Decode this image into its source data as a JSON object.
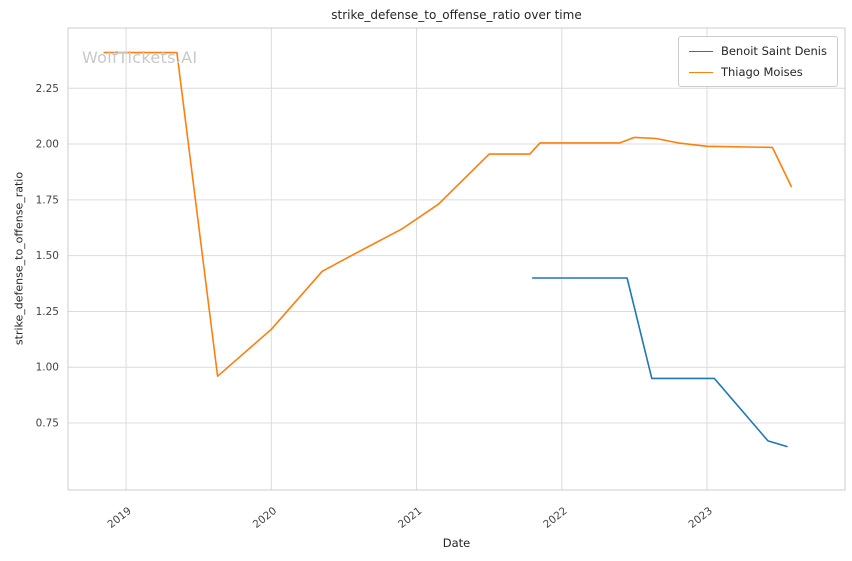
{
  "title": "strike_defense_to_offense_ratio over time",
  "xlabel": "Date",
  "ylabel": "strike_defense_to_offense_ratio",
  "watermark": "WolfTickets.AI",
  "legend": [
    {
      "label": "Benoit Saint Denis",
      "color": "#1f77b4"
    },
    {
      "label": "Thiago Moises",
      "color": "#ff7f0e"
    }
  ],
  "chart_data": {
    "type": "line",
    "title": "strike_defense_to_offense_ratio over time",
    "xlabel": "Date",
    "ylabel": "strike_defense_to_offense_ratio",
    "grid": true,
    "legend_position": "upper right",
    "xlim": [
      2018.6,
      2023.95
    ],
    "ylim": [
      0.45,
      2.52
    ],
    "x_ticks": [
      2019,
      2020,
      2021,
      2022,
      2023
    ],
    "y_ticks": [
      0.75,
      1.0,
      1.25,
      1.5,
      1.75,
      2.0,
      2.25
    ],
    "series": [
      {
        "name": "Benoit Saint Denis",
        "color": "#1f77b4",
        "points": [
          [
            2021.8,
            1.4
          ],
          [
            2022.45,
            1.4
          ],
          [
            2022.62,
            0.95
          ],
          [
            2023.05,
            0.95
          ],
          [
            2023.42,
            0.67
          ],
          [
            2023.55,
            0.645
          ]
        ]
      },
      {
        "name": "Thiago Moises",
        "color": "#ff7f0e",
        "points": [
          [
            2018.85,
            2.41
          ],
          [
            2019.35,
            2.41
          ],
          [
            2019.63,
            0.96
          ],
          [
            2020.0,
            1.17
          ],
          [
            2020.35,
            1.43
          ],
          [
            2020.55,
            1.5
          ],
          [
            2020.9,
            1.62
          ],
          [
            2021.15,
            1.73
          ],
          [
            2021.5,
            1.955
          ],
          [
            2021.78,
            1.955
          ],
          [
            2021.85,
            2.005
          ],
          [
            2022.4,
            2.005
          ],
          [
            2022.5,
            2.03
          ],
          [
            2022.65,
            2.025
          ],
          [
            2022.8,
            2.005
          ],
          [
            2023.0,
            1.99
          ],
          [
            2023.45,
            1.985
          ],
          [
            2023.58,
            1.81
          ]
        ]
      }
    ]
  }
}
